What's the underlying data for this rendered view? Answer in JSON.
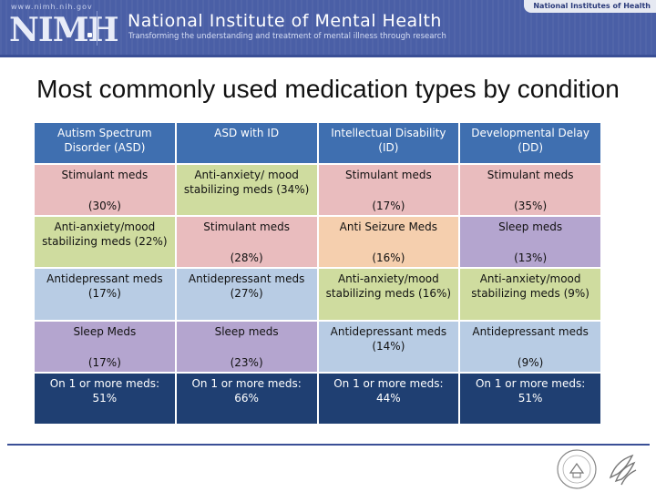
{
  "header": {
    "url": "www.nimh.nih.gov",
    "logo": "NIMH",
    "title": "National Institute of Mental Health",
    "tagline": "Transforming the understanding and treatment of mental illness through research",
    "nih_label": "National Institutes of Health"
  },
  "slide": {
    "title": "Most commonly used medication types by condition"
  },
  "table": {
    "headers": [
      "Autism Spectrum Disorder (ASD)",
      "ASD with ID",
      "Intellectual Disability (ID)",
      "Developmental Delay (DD)"
    ],
    "rows": [
      [
        {
          "label": "Stimulant meds",
          "pct": "(30%)"
        },
        {
          "label": "Anti-anxiety/ mood stabilizing meds (34%)",
          "pct": ""
        },
        {
          "label": "Stimulant meds",
          "pct": "(17%)"
        },
        {
          "label": "Stimulant meds",
          "pct": "(35%)"
        }
      ],
      [
        {
          "label": "Anti-anxiety/mood stabilizing meds (22%)",
          "pct": ""
        },
        {
          "label": "Stimulant meds",
          "pct": "(28%)"
        },
        {
          "label": "Anti Seizure Meds",
          "pct": "(16%)"
        },
        {
          "label": "Sleep meds",
          "pct": "(13%)"
        }
      ],
      [
        {
          "label": "Antidepressant meds (17%)",
          "pct": ""
        },
        {
          "label": "Antidepressant meds (27%)",
          "pct": ""
        },
        {
          "label": "Anti-anxiety/mood stabilizing meds (16%)",
          "pct": ""
        },
        {
          "label": "Anti-anxiety/mood stabilizing meds (9%)",
          "pct": ""
        }
      ],
      [
        {
          "label": "Sleep Meds",
          "pct": "(17%)"
        },
        {
          "label": "Sleep meds",
          "pct": "(23%)"
        },
        {
          "label": "Antidepressant meds (14%)",
          "pct": ""
        },
        {
          "label": "Antidepressant meds",
          "pct": "(9%)"
        }
      ],
      [
        {
          "label": "On 1 or more meds: 51%",
          "pct": ""
        },
        {
          "label": "On 1 or more meds: 66%",
          "pct": ""
        },
        {
          "label": "On 1 or more meds: 44%",
          "pct": ""
        },
        {
          "label": "On 1 or more meds: 51%",
          "pct": ""
        }
      ]
    ]
  },
  "colors": {
    "header_blue": "#3f6fb0",
    "stimulant_pink": "#e9bcbe",
    "anxiety_green": "#cfdc9f",
    "sleep_purple": "#b4a5cf",
    "antidepressant_blue": "#b8cce4",
    "seizure_peach": "#f5cfae",
    "total_navy": "#1f3f72"
  },
  "icons": {
    "footer_left": "hhs-seal-icon",
    "footer_right": "hhs-eagle-icon"
  }
}
